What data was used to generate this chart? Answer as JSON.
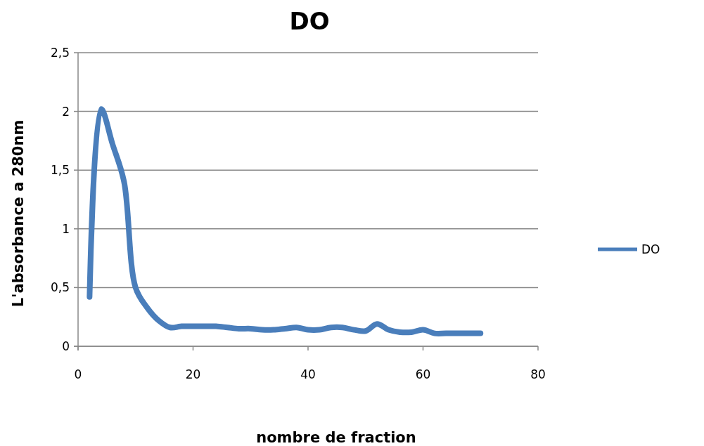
{
  "chart_data": {
    "type": "line",
    "title": "DO",
    "xlabel": "nombre de fraction",
    "ylabel": "L'absorbance a 280nm",
    "x": [
      2,
      4,
      6,
      8,
      10,
      12,
      14,
      16,
      18,
      20,
      22,
      24,
      26,
      28,
      30,
      32,
      34,
      36,
      38,
      40,
      42,
      44,
      46,
      48,
      50,
      52,
      54,
      56,
      58,
      60,
      62,
      64,
      66,
      68,
      70
    ],
    "series": [
      {
        "name": "DO",
        "color": "#4a7ebb",
        "values": [
          0.42,
          2.02,
          1.72,
          1.4,
          0.5,
          0.33,
          0.22,
          0.16,
          0.17,
          0.17,
          0.17,
          0.17,
          0.16,
          0.15,
          0.15,
          0.14,
          0.14,
          0.15,
          0.16,
          0.14,
          0.14,
          0.16,
          0.16,
          0.14,
          0.13,
          0.19,
          0.14,
          0.12,
          0.12,
          0.14,
          0.11,
          0.11,
          0.11,
          0.11,
          0.11
        ]
      }
    ],
    "xlim": [
      0,
      80
    ],
    "xticks": [
      0,
      20,
      40,
      60,
      80
    ],
    "ylim": [
      0,
      2.5
    ],
    "yticks": [
      0,
      {
        "value": 0.5,
        "label": "0,5"
      },
      1,
      {
        "value": 1.5,
        "label": "1,5"
      },
      2,
      {
        "value": 2.5,
        "label": "2,5"
      }
    ],
    "grid": "y",
    "legend": "right",
    "marker": "none",
    "line_style": "solid"
  }
}
